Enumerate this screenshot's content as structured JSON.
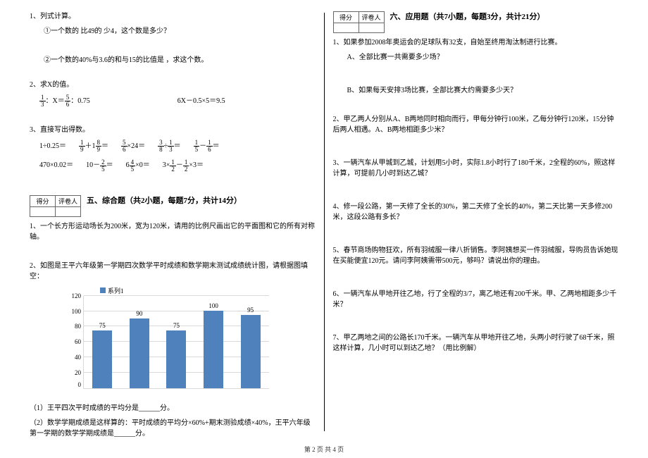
{
  "footer": "第 2 页  共 4 页",
  "left": {
    "q1_title": "1、列式计算。",
    "q1_a": "①一个数的 比49的 少4，这个数是多少？",
    "q1_b": "②一个数的40%与3.6的和与15的比值是  ，求这个数。",
    "q2_title": "2、求X的值。",
    "q2_a_left_num": "1",
    "q2_a_left_den": "3",
    "q2_a_mid": "：X＝",
    "q2_a_right_num": "5",
    "q2_a_right_den": "6",
    "q2_a_tail": "：0.75",
    "q2_b": "6X－0.5×5＝9.5",
    "q3_title": "3、直接写出得数。",
    "eq": {
      "r1c1": "1÷0.25＝",
      "r1c2_a_num": "1",
      "r1c2_a_den": "9",
      "r1c2_plus": "＋1",
      "r1c2_b_num": "8",
      "r1c2_b_den": "9",
      "r1c2_eq": "＝",
      "r1c3_num": "5",
      "r1c3_den": "6",
      "r1c3_tail": "×24＝",
      "r1c4_a_num": "3",
      "r1c4_a_den": "8",
      "r1c4_mid": "÷",
      "r1c4_b_num": "1",
      "r1c4_b_den": "3",
      "r1c4_eq": "＝",
      "r1c5_a_num": "1",
      "r1c5_a_den": "5",
      "r1c5_mid": "－",
      "r1c5_b_num": "1",
      "r1c5_b_den": "6",
      "r1c5_eq": "＝",
      "r2c1": "470×0.02＝",
      "r2c2_pre": "10－",
      "r2c2_num": "2",
      "r2c2_den": "5",
      "r2c2_eq": "＝",
      "r2c3_pre": "6",
      "r2c3_num": "4",
      "r2c3_den": "5",
      "r2c3_tail": "×0＝",
      "r2c4_pre": "3×",
      "r2c4_a_num": "1",
      "r2c4_a_den": "2",
      "r2c4_mid": "－",
      "r2c4_b_num": "1",
      "r2c4_b_den": "2",
      "r2c4_tail": "×3＝"
    },
    "score_header1": "得分",
    "score_header2": "评卷人",
    "section5_title": "五、综合题（共2小题，每题7分，共计14分）",
    "s5_q1": "1、一个长方形运动场长为200米，宽为120米，请用的比例尺画出它的平面图和它的所有对称轴。",
    "s5_q2": "2、如图是王平六年级第一学期四次数学平时成绩和数学期末测试成绩统计图，请根据图填空：",
    "chart_legend": "系列1",
    "y_ticks": [
      "120",
      "100",
      "80",
      "60",
      "40",
      "20",
      "0"
    ],
    "bars": [
      {
        "label": "75",
        "value": 75
      },
      {
        "label": "90",
        "value": 90
      },
      {
        "label": "75",
        "value": 75
      },
      {
        "label": "100",
        "value": 100
      },
      {
        "label": "95",
        "value": 95
      }
    ],
    "bar_color": "#4f81bd",
    "grid_color": "#d9d9d9",
    "ylim_max": 120,
    "s5_sub1": "（1）王平四次平时成绩的平均分是______分。",
    "s5_sub2": "（2）数学学期成绩是这样算的：平时成绩的平均分×60%+期末测验成绩×40%，王平六年级第一学期的数学学期成绩是______分。"
  },
  "right": {
    "score_header1": "得分",
    "score_header2": "评卷人",
    "section6_title": "六、应用题（共7小题，每题3分，共计21分）",
    "q1": "1、如果参加2008年奥运会的足球队有32支，自始至终用淘汰制进行比赛。",
    "q1a": "A、全部比赛一共需要多少场？",
    "q1b": "B、如果每天安排3场比赛，全部比赛大约需要多少天？",
    "q2": "2、甲乙两人分别从A、B两地同时相向而行，甲每分钟行100米，乙每分钟行120米，15分钟后两人相遇。A、B两地相距多少米？",
    "q3": "3、一辆汽车从甲城到乙城，计划用5小时，实际1.8小时行了180千米，2全程的60%，照这样计算，可提前几小时到达乙城？",
    "q4": "4、修一段公路，第一天修了全长的30%，第二天修了全长的40%，第二天比第一天多修200米，这段公路有多长？",
    "q5": "5、春节商场购物狂欢，所有羽绒服一律八折销售。李阿姨想买一件羽绒服，导购员告诉她现在买能便宜120元。请问李阿姨需带500元，够吗？请说出你的理由。",
    "q6": "6、一辆汽车从甲地开往乙地，行了全程的3/7，离乙地还有200千米。甲、乙两地相距多少千米？",
    "q7": "7、甲乙两地之间的公路长170千米。一辆汽车从甲地开往乙地，头两小时行驶了68千米，照这样计算，几小时可以到达乙地？（用比例解）"
  }
}
